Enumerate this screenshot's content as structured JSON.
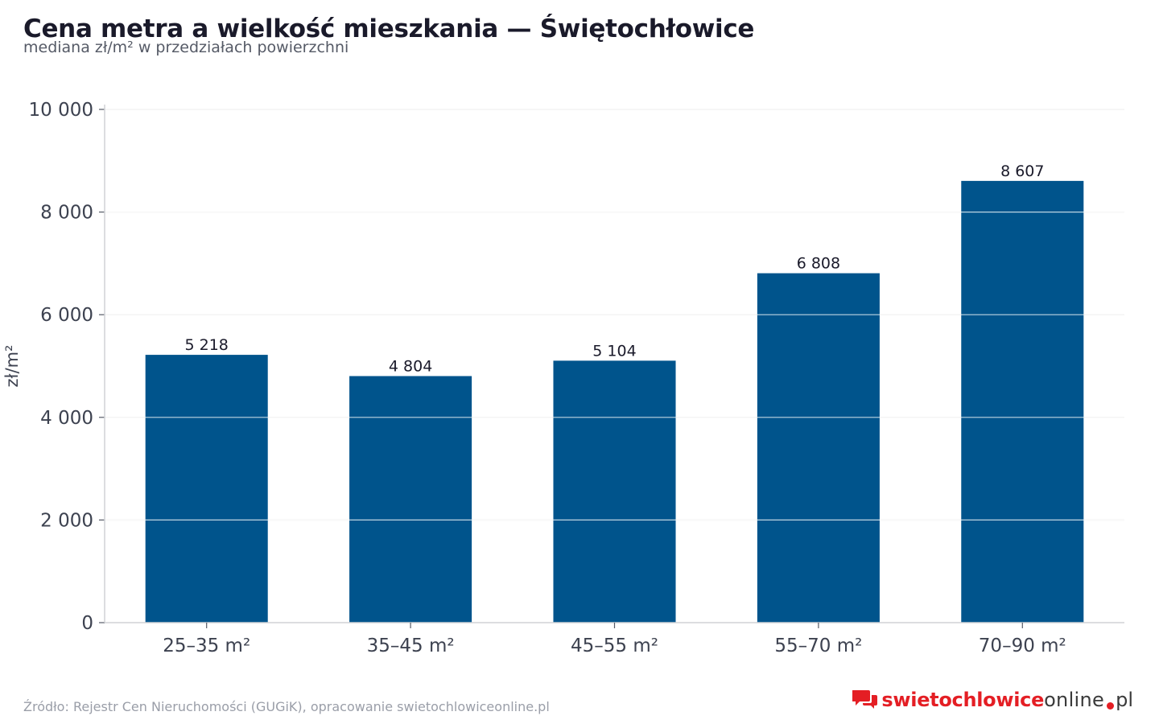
{
  "header": {
    "title": "Cena metra a wielkość mieszkania — Świętochłowice",
    "subtitle": "mediana zł/m² w przedziałach powierzchni"
  },
  "footer": {
    "source": "Źródło: Rejestr Cen Nieruchomości (GUGiK), opracowanie swietochlowiceonline.pl",
    "brand_main": "swietochlowice",
    "brand_mid": "online",
    "brand_tld": "pl",
    "brand_icon": "speech-bubbles-icon"
  },
  "colors": {
    "bar": "#00548c",
    "grid": "#e6e6e6",
    "brand_red": "#e41e24"
  },
  "chart_data": {
    "type": "bar",
    "title": "Cena metra a wielkość mieszkania — Świętochłowice",
    "subtitle": "mediana zł/m² w przedziałach powierzchni",
    "categories": [
      "25–35 m²",
      "35–45 m²",
      "45–55 m²",
      "55–70 m²",
      "70–90 m²"
    ],
    "values": [
      5218,
      4804,
      5104,
      6808,
      8607
    ],
    "value_labels": [
      "5 218",
      "4 804",
      "5 104",
      "6 808",
      "8 607"
    ],
    "xlabel": "",
    "ylabel": "zł/m²",
    "ylim": [
      0,
      10000
    ],
    "yticks": [
      0,
      2000,
      4000,
      6000,
      8000,
      10000
    ],
    "ytick_labels": [
      "0",
      "2 000",
      "4 000",
      "6 000",
      "8 000",
      "10 000"
    ],
    "grid": true,
    "legend": "none"
  }
}
